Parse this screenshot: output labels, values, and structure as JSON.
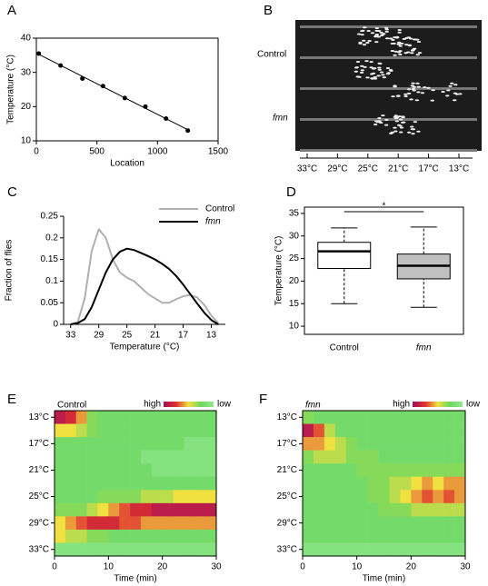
{
  "chart_data": [
    {
      "type": "scatter",
      "panel": "A",
      "x": [
        20,
        200,
        380,
        550,
        730,
        900,
        1070,
        1250
      ],
      "y": [
        35.5,
        32,
        28.2,
        26,
        22.5,
        20,
        16.5,
        13
      ],
      "xlim": [
        0,
        1500
      ],
      "ylim": [
        10,
        40
      ],
      "xticks": [
        0,
        500,
        1000,
        1500
      ],
      "yticks": [
        10,
        20,
        30,
        40
      ],
      "xlabel": "Location",
      "ylabel": "Temperature (°C)",
      "color": "#000000",
      "fit_line": true
    },
    {
      "type": "image",
      "panel": "B",
      "row_labels": [
        "Control",
        "fmn"
      ],
      "x_labels": [
        "33°C",
        "29°C",
        "25°C",
        "21°C",
        "17°C",
        "13°C"
      ]
    },
    {
      "type": "line",
      "panel": "C",
      "x": [
        33,
        32,
        31,
        30,
        29,
        28,
        27,
        26,
        25,
        24,
        23,
        22,
        21,
        20,
        19,
        18,
        17,
        16,
        15,
        14,
        13,
        12
      ],
      "xlim": [
        34,
        11
      ],
      "ylim": [
        0,
        0.25
      ],
      "xticks": [
        33,
        29,
        25,
        21,
        17,
        13
      ],
      "yticks": [
        0,
        0.05,
        0.1,
        0.15,
        0.2,
        0.25
      ],
      "xlabel": "Temperature (°C)",
      "ylabel": "Fraction of flies",
      "series": [
        {
          "name": "Control",
          "color": "#b0b0b0",
          "values": [
            0,
            0.005,
            0.06,
            0.17,
            0.22,
            0.2,
            0.15,
            0.12,
            0.108,
            0.1,
            0.085,
            0.07,
            0.06,
            0.05,
            0.05,
            0.058,
            0.065,
            0.068,
            0.062,
            0.045,
            0.02,
            0.003
          ]
        },
        {
          "name": "fmn",
          "color": "#000000",
          "values": [
            0,
            0.003,
            0.012,
            0.04,
            0.08,
            0.12,
            0.15,
            0.168,
            0.175,
            0.172,
            0.165,
            0.158,
            0.15,
            0.14,
            0.128,
            0.112,
            0.092,
            0.07,
            0.048,
            0.027,
            0.01,
            0
          ]
        }
      ]
    },
    {
      "type": "box",
      "panel": "D",
      "categories": [
        "Control",
        "fmn"
      ],
      "min": [
        15,
        14.2
      ],
      "q1": [
        22.8,
        20.5
      ],
      "median": [
        26.6,
        23.4
      ],
      "q3": [
        28.6,
        26
      ],
      "max": [
        31.8,
        32
      ],
      "colors": [
        "#ffffff",
        "#c0c0c0"
      ],
      "ylim": [
        8.2,
        36.4
      ],
      "yticks": [
        10,
        15,
        20,
        25,
        30,
        35
      ],
      "ylabel": "Temperature (°C)",
      "annotation": "*"
    },
    {
      "type": "heatmap",
      "panel": "E",
      "title": "Control",
      "x": [
        1,
        3,
        5,
        7,
        9,
        11,
        13,
        15,
        17,
        19,
        21,
        23,
        25,
        27,
        29
      ],
      "y": [
        13,
        15,
        17,
        19,
        21,
        23,
        25,
        27,
        29,
        31,
        33
      ],
      "z": [
        [
          0.9,
          0.8,
          0.6,
          0.3,
          0.2,
          0.2,
          0.2,
          0.2,
          0.2,
          0.2,
          0.2,
          0.2,
          0.2,
          0.2,
          0.2
        ],
        [
          0.5,
          0.5,
          0.4,
          0.3,
          0.2,
          0.2,
          0.2,
          0.2,
          0.2,
          0.2,
          0.2,
          0.2,
          0.2,
          0.2,
          0.2
        ],
        [
          0.2,
          0.2,
          0.2,
          0.2,
          0.2,
          0.2,
          0.2,
          0.2,
          0.2,
          0.2,
          0.2,
          0.2,
          0.1,
          0.1,
          0.1
        ],
        [
          0.2,
          0.2,
          0.2,
          0.2,
          0.2,
          0.2,
          0.2,
          0.2,
          0.1,
          0.1,
          0.1,
          0.1,
          0.1,
          0.1,
          0.1
        ],
        [
          0.2,
          0.2,
          0.2,
          0.2,
          0.2,
          0.2,
          0.2,
          0.2,
          0.2,
          0.1,
          0.1,
          0.1,
          0.1,
          0.1,
          0.1
        ],
        [
          0.2,
          0.2,
          0.2,
          0.2,
          0.2,
          0.2,
          0.2,
          0.2,
          0.2,
          0.2,
          0.2,
          0.2,
          0.2,
          0.2,
          0.2
        ],
        [
          0.2,
          0.2,
          0.2,
          0.2,
          0.3,
          0.3,
          0.3,
          0.3,
          0.4,
          0.4,
          0.4,
          0.5,
          0.5,
          0.5,
          0.5
        ],
        [
          0.3,
          0.3,
          0.3,
          0.4,
          0.5,
          0.6,
          0.7,
          0.8,
          0.8,
          0.9,
          0.9,
          0.9,
          0.9,
          0.9,
          0.9
        ],
        [
          0.5,
          0.6,
          0.7,
          0.8,
          0.8,
          0.8,
          0.7,
          0.7,
          0.6,
          0.6,
          0.6,
          0.6,
          0.6,
          0.6,
          0.6
        ],
        [
          0.5,
          0.4,
          0.4,
          0.3,
          0.3,
          0.2,
          0.2,
          0.2,
          0.2,
          0.2,
          0.2,
          0.2,
          0.2,
          0.2,
          0.2
        ],
        [
          0.1,
          0.1,
          0.1,
          0.1,
          0.1,
          0.1,
          0.1,
          0.1,
          0.1,
          0.1,
          0.1,
          0.1,
          0.1,
          0.1,
          0.1
        ]
      ],
      "xlim": [
        0,
        30
      ],
      "ylim": [
        34,
        12
      ],
      "xticks": [
        0,
        10,
        20,
        30
      ],
      "yticks": [
        {
          "value": 13,
          "label": "13°C"
        },
        {
          "value": 17,
          "label": "17°C"
        },
        {
          "value": 21,
          "label": "21°C"
        },
        {
          "value": 25,
          "label": "25°C"
        },
        {
          "value": 29,
          "label": "29°C"
        },
        {
          "value": 33,
          "label": "33°C"
        }
      ],
      "xlabel": "Time (min)",
      "colorbar": {
        "high": "high",
        "low": "low",
        "colors": [
          "#a0105a",
          "#e03030",
          "#f0e040",
          "#6cd860",
          "#94e894"
        ]
      }
    },
    {
      "type": "heatmap",
      "panel": "F",
      "title": "fmn",
      "x": [
        1,
        3,
        5,
        7,
        9,
        11,
        13,
        15,
        17,
        19,
        21,
        23,
        25,
        27,
        29
      ],
      "y": [
        13,
        15,
        17,
        19,
        21,
        23,
        25,
        27,
        29,
        31,
        33
      ],
      "z": [
        [
          0.3,
          0.2,
          0.2,
          0.2,
          0.2,
          0.2,
          0.2,
          0.2,
          0.2,
          0.2,
          0.2,
          0.2,
          0.2,
          0.2,
          0.2
        ],
        [
          0.9,
          0.7,
          0.4,
          0.2,
          0.2,
          0.2,
          0.2,
          0.2,
          0.2,
          0.2,
          0.2,
          0.2,
          0.2,
          0.2,
          0.2
        ],
        [
          0.6,
          0.6,
          0.5,
          0.4,
          0.3,
          0.2,
          0.2,
          0.2,
          0.2,
          0.2,
          0.2,
          0.2,
          0.2,
          0.2,
          0.2
        ],
        [
          0.3,
          0.4,
          0.4,
          0.4,
          0.3,
          0.3,
          0.3,
          0.2,
          0.2,
          0.2,
          0.2,
          0.2,
          0.2,
          0.2,
          0.2
        ],
        [
          0.2,
          0.2,
          0.2,
          0.2,
          0.2,
          0.3,
          0.3,
          0.3,
          0.3,
          0.3,
          0.3,
          0.3,
          0.3,
          0.3,
          0.3
        ],
        [
          0.2,
          0.2,
          0.2,
          0.2,
          0.2,
          0.2,
          0.3,
          0.3,
          0.4,
          0.4,
          0.5,
          0.6,
          0.5,
          0.6,
          0.6
        ],
        [
          0.2,
          0.2,
          0.2,
          0.2,
          0.2,
          0.2,
          0.3,
          0.3,
          0.4,
          0.5,
          0.6,
          0.7,
          0.6,
          0.7,
          0.6
        ],
        [
          0.2,
          0.2,
          0.2,
          0.2,
          0.2,
          0.2,
          0.2,
          0.3,
          0.3,
          0.3,
          0.4,
          0.4,
          0.4,
          0.4,
          0.4
        ],
        [
          0.2,
          0.2,
          0.2,
          0.2,
          0.2,
          0.2,
          0.2,
          0.2,
          0.2,
          0.2,
          0.2,
          0.2,
          0.2,
          0.2,
          0.2
        ],
        [
          0.2,
          0.2,
          0.2,
          0.2,
          0.2,
          0.2,
          0.2,
          0.2,
          0.2,
          0.2,
          0.2,
          0.2,
          0.2,
          0.2,
          0.2
        ],
        [
          0.1,
          0.1,
          0.1,
          0.1,
          0.1,
          0.1,
          0.1,
          0.1,
          0.1,
          0.1,
          0.1,
          0.1,
          0.1,
          0.1,
          0.1
        ]
      ],
      "xlim": [
        0,
        30
      ],
      "ylim": [
        34,
        12
      ],
      "xticks": [
        0,
        10,
        20,
        30
      ],
      "yticks": [
        {
          "value": 13,
          "label": "13°C"
        },
        {
          "value": 17,
          "label": "17°C"
        },
        {
          "value": 21,
          "label": "21°C"
        },
        {
          "value": 25,
          "label": "25°C"
        },
        {
          "value": 29,
          "label": "29°C"
        },
        {
          "value": 33,
          "label": "33°C"
        }
      ],
      "xlabel": "Time (min)",
      "colorbar": {
        "high": "high",
        "low": "low",
        "colors": [
          "#a0105a",
          "#e03030",
          "#f0e040",
          "#6cd860",
          "#94e894"
        ]
      }
    }
  ]
}
